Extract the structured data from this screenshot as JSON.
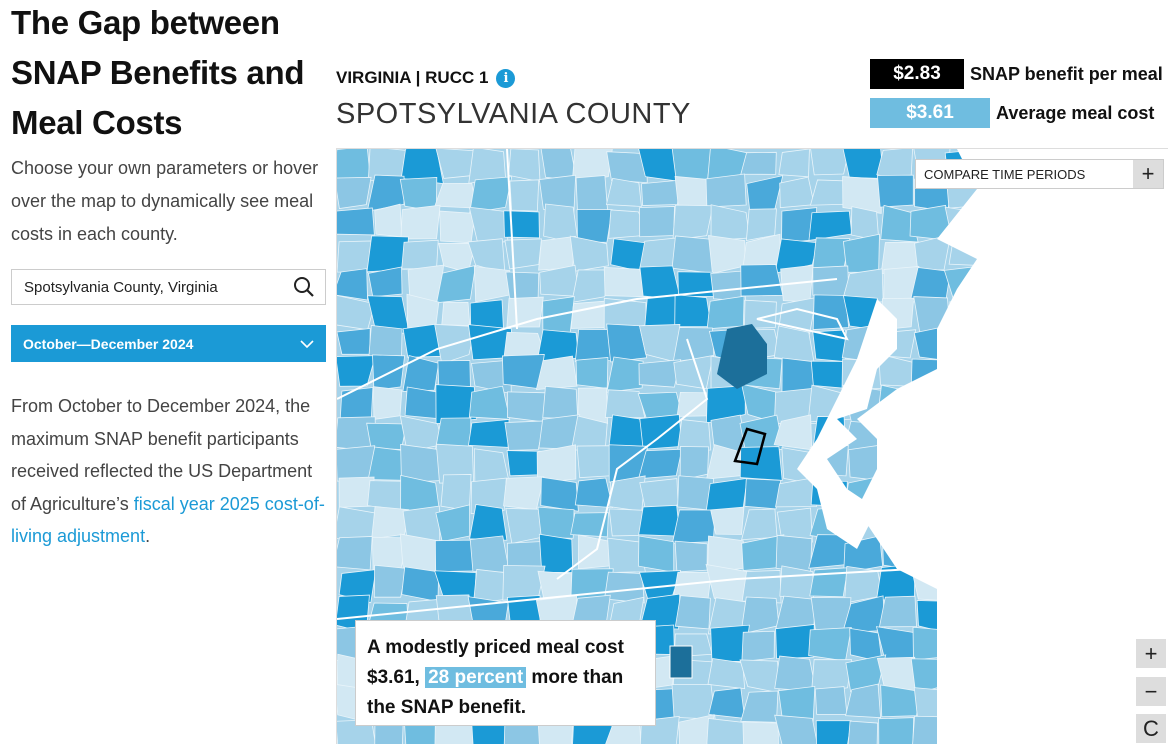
{
  "title": "The Gap between SNAP Benefits and Meal Costs",
  "intro": "Choose your own parameters or hover over the map to dynamically see meal costs in each county.",
  "search": {
    "value": "Spotsylvania County, Virginia",
    "icon": "search-icon"
  },
  "period": {
    "selected": "October—December 2024",
    "icon": "chevron-down-icon"
  },
  "description": {
    "text": "From October to December 2024, the maximum SNAP benefit participants received reflected the US Department of Agriculture’s ",
    "link": "fiscal year 2025 cost-of-living adjustment",
    "end": "."
  },
  "header": {
    "state": "VIRGINIA | RUCC 1",
    "info_icon": "i",
    "county": "SPOTSYLVANIA COUNTY"
  },
  "legend": [
    {
      "value": "$2.83",
      "label": "SNAP benefit per meal",
      "color": "#000000"
    },
    {
      "value": "$3.61",
      "label": "Average meal cost",
      "color": "#6fbde0"
    }
  ],
  "compare": {
    "label": "COMPARE TIME PERIODS",
    "icon": "+"
  },
  "zoom": {
    "in": "+",
    "out": "−",
    "reset": "C"
  },
  "callout": {
    "pre": "A modestly priced meal cost $3.61, ",
    "highlight": "28 percent",
    "post": " more than the SNAP benefit."
  }
}
